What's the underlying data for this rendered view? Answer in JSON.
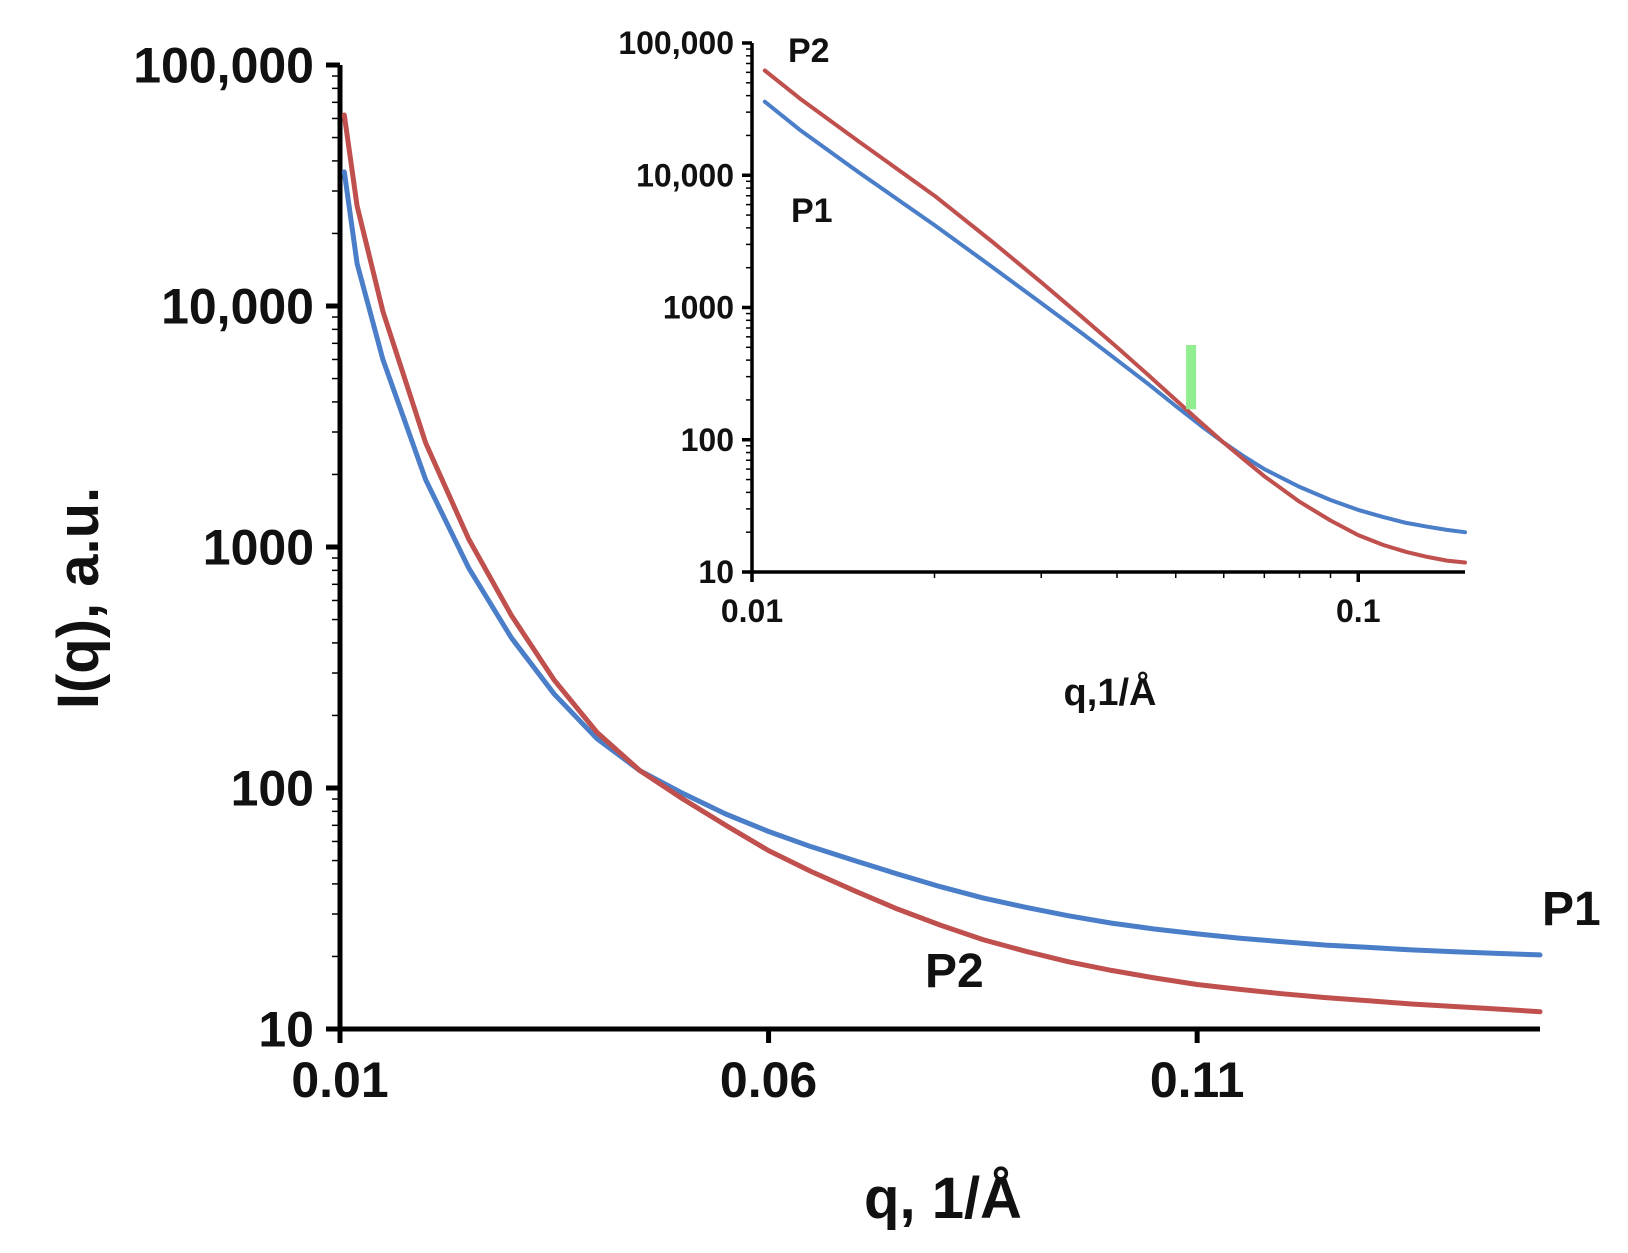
{
  "chart_data": [
    {
      "id": "main",
      "type": "line",
      "title": "",
      "xlabel": "q, 1/Å",
      "ylabel": "I(q), a.u.",
      "xscale": "linear",
      "yscale": "log",
      "xlim": [
        0.01,
        0.15
      ],
      "ylim": [
        10,
        100000
      ],
      "x_ticks": [
        0.01,
        0.06,
        0.11
      ],
      "x_tick_labels": [
        "0.01",
        "0.06",
        "0.11"
      ],
      "y_ticks": [
        10,
        100,
        1000,
        10000,
        100000
      ],
      "y_tick_labels": [
        "10",
        "100",
        "1000",
        "10,000",
        "100,000"
      ],
      "grid": false,
      "series": [
        {
          "name": "P1",
          "color": "#4a7ec8",
          "x": [
            0.0105,
            0.012,
            0.015,
            0.02,
            0.025,
            0.03,
            0.035,
            0.04,
            0.045,
            0.05,
            0.055,
            0.06,
            0.065,
            0.07,
            0.075,
            0.08,
            0.085,
            0.09,
            0.095,
            0.1,
            0.105,
            0.11,
            0.115,
            0.12,
            0.125,
            0.13,
            0.135,
            0.14,
            0.145,
            0.15
          ],
          "y": [
            36000,
            15000,
            6000,
            1900,
            820,
            420,
            245,
            160,
            118,
            95,
            78,
            66,
            57,
            50,
            44,
            39,
            35,
            32,
            29.5,
            27.5,
            26,
            24.8,
            23.8,
            23,
            22.3,
            21.8,
            21.3,
            20.9,
            20.6,
            20.3
          ]
        },
        {
          "name": "P2",
          "color": "#c0504d",
          "x": [
            0.0105,
            0.012,
            0.015,
            0.02,
            0.025,
            0.03,
            0.035,
            0.04,
            0.045,
            0.05,
            0.055,
            0.06,
            0.065,
            0.07,
            0.075,
            0.08,
            0.085,
            0.09,
            0.095,
            0.1,
            0.105,
            0.11,
            0.115,
            0.12,
            0.125,
            0.13,
            0.135,
            0.14,
            0.145,
            0.15
          ],
          "y": [
            62000,
            26000,
            9500,
            2700,
            1080,
            520,
            280,
            170,
            118,
            90,
            70,
            55,
            45,
            37.5,
            31.5,
            27,
            23.5,
            21,
            19,
            17.5,
            16.3,
            15.3,
            14.6,
            14,
            13.5,
            13.1,
            12.7,
            12.4,
            12.1,
            11.8
          ]
        }
      ],
      "annotations": [
        {
          "text": "P1",
          "series": "P1",
          "position": "right end"
        },
        {
          "text": "P2",
          "series": "P2",
          "position": "below curve"
        }
      ]
    },
    {
      "id": "inset",
      "type": "line",
      "title": "",
      "xlabel": "q,1/Å",
      "ylabel": "",
      "xscale": "log",
      "yscale": "log",
      "xlim": [
        0.01,
        0.15
      ],
      "ylim": [
        10,
        100000
      ],
      "x_ticks": [
        0.01,
        0.1
      ],
      "x_tick_labels": [
        "0.01",
        "0.1"
      ],
      "y_ticks": [
        10,
        100,
        1000,
        10000,
        100000
      ],
      "y_tick_labels": [
        "10",
        "100",
        "1000",
        "10,000",
        "100,000"
      ],
      "grid": false,
      "series": [
        {
          "name": "P1",
          "color": "#4a7ec8",
          "x": [
            0.0105,
            0.012,
            0.015,
            0.02,
            0.025,
            0.03,
            0.035,
            0.04,
            0.045,
            0.05,
            0.055,
            0.06,
            0.065,
            0.07,
            0.08,
            0.09,
            0.1,
            0.11,
            0.12,
            0.13,
            0.14,
            0.15
          ],
          "y": [
            36000,
            22000,
            10500,
            4200,
            2000,
            1080,
            640,
            400,
            265,
            180,
            128,
            95,
            74,
            60,
            44,
            35,
            29.5,
            26,
            23.5,
            22,
            20.8,
            20
          ]
        },
        {
          "name": "P2",
          "color": "#c0504d",
          "x": [
            0.0105,
            0.012,
            0.015,
            0.02,
            0.025,
            0.03,
            0.035,
            0.04,
            0.045,
            0.05,
            0.055,
            0.06,
            0.065,
            0.07,
            0.08,
            0.09,
            0.1,
            0.11,
            0.12,
            0.13,
            0.14,
            0.15
          ],
          "y": [
            62000,
            38000,
            18000,
            7000,
            3100,
            1550,
            850,
            500,
            310,
            200,
            135,
            95,
            70,
            53,
            34,
            24.5,
            19,
            16,
            14.2,
            13,
            12.2,
            11.8
          ]
        }
      ],
      "annotations": [
        {
          "text": "P2",
          "series": "P2",
          "position": "top-left"
        },
        {
          "text": "P1",
          "series": "P1",
          "position": "top-left below P2"
        },
        {
          "text": "",
          "type": "marker",
          "color": "#90ee90",
          "x": 0.053,
          "y_range": [
            170,
            520
          ]
        }
      ]
    }
  ]
}
